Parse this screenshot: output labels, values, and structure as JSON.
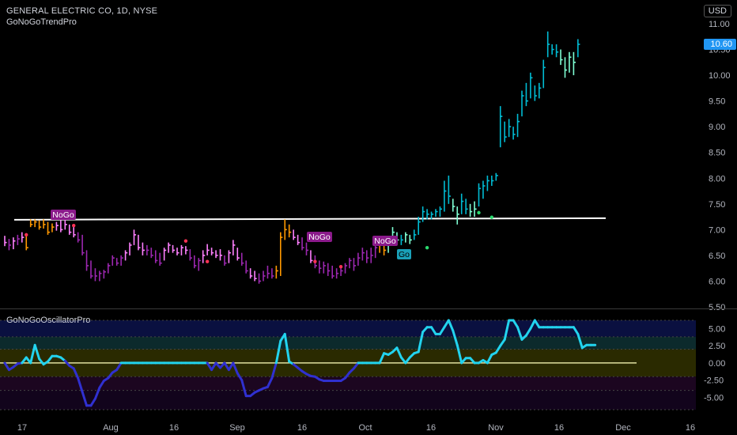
{
  "header": {
    "symbol_title": "GENERAL ELECTRIC CO, 1D, NYSE",
    "indicator_main": "GoNoGoTrendPro",
    "indicator_sub": "GoNoGoOscillatorPro",
    "currency": "USD",
    "last_price": "10.60"
  },
  "colors": {
    "background": "#000000",
    "go_strong": "#00bcd4",
    "go_weak": "#7fffd4",
    "nogo_strong": "#9c27b0",
    "nogo_weak": "#ff80ff",
    "neutral": "#ff9800",
    "osc_positive": "#22d3ee",
    "osc_negative": "#3030d0",
    "resistance": "#ffffff"
  },
  "chart_data": [
    {
      "type": "ohlc",
      "ylim": [
        5.5,
        11.0
      ],
      "yticks": [
        "11.00",
        "10.50",
        "10.00",
        "9.50",
        "9.00",
        "8.50",
        "8.00",
        "7.50",
        "7.00",
        "6.50",
        "6.00",
        "5.50"
      ],
      "xtick_labels": [
        "17",
        "Aug",
        "16",
        "Sep",
        "16",
        "Oct",
        "16",
        "Nov",
        "16",
        "Dec",
        "16"
      ],
      "resistance_level": 7.2,
      "labels": [
        {
          "text": "NoGo",
          "bar": 11
        },
        {
          "text": "NoGo",
          "bar": 70
        },
        {
          "text": "NoGo",
          "bar": 87
        },
        {
          "text": "Go",
          "bar": 90
        }
      ],
      "bars": [
        {
          "h": 6.88,
          "l": 6.68,
          "c": 6.75,
          "s": "nogo_weak"
        },
        {
          "h": 6.82,
          "l": 6.6,
          "c": 6.7,
          "s": "nogo_strong"
        },
        {
          "h": 6.85,
          "l": 6.62,
          "c": 6.78,
          "s": "nogo_weak"
        },
        {
          "h": 6.9,
          "l": 6.7,
          "c": 6.82,
          "s": "nogo_strong"
        },
        {
          "h": 6.95,
          "l": 6.75,
          "c": 6.85,
          "s": "nogo_weak"
        },
        {
          "h": 6.9,
          "l": 6.6,
          "c": 6.65,
          "s": "neutral"
        },
        {
          "h": 7.2,
          "l": 7.05,
          "c": 7.1,
          "s": "neutral"
        },
        {
          "h": 7.2,
          "l": 7.05,
          "c": 7.15,
          "s": "neutral"
        },
        {
          "h": 7.18,
          "l": 7.0,
          "c": 7.05,
          "s": "neutral"
        },
        {
          "h": 7.2,
          "l": 7.02,
          "c": 7.1,
          "s": "neutral"
        },
        {
          "h": 7.15,
          "l": 6.9,
          "c": 6.95,
          "s": "neutral"
        },
        {
          "h": 7.12,
          "l": 6.95,
          "c": 7.05,
          "s": "neutral"
        },
        {
          "h": 7.15,
          "l": 6.98,
          "c": 7.08,
          "s": "nogo_weak"
        },
        {
          "h": 7.18,
          "l": 6.95,
          "c": 7.0,
          "s": "nogo_weak"
        },
        {
          "h": 7.2,
          "l": 7.0,
          "c": 7.1,
          "s": "nogo_weak"
        },
        {
          "h": 7.1,
          "l": 6.9,
          "c": 6.95,
          "s": "nogo_weak"
        },
        {
          "h": 7.05,
          "l": 6.85,
          "c": 6.9,
          "s": "nogo_weak"
        },
        {
          "h": 6.95,
          "l": 6.75,
          "c": 6.8,
          "s": "nogo_strong"
        },
        {
          "h": 6.9,
          "l": 6.5,
          "c": 6.55,
          "s": "nogo_strong"
        },
        {
          "h": 6.6,
          "l": 6.2,
          "c": 6.3,
          "s": "nogo_strong"
        },
        {
          "h": 6.4,
          "l": 6.05,
          "c": 6.1,
          "s": "nogo_strong"
        },
        {
          "h": 6.25,
          "l": 6.0,
          "c": 6.1,
          "s": "nogo_strong"
        },
        {
          "h": 6.2,
          "l": 6.0,
          "c": 6.15,
          "s": "nogo_strong"
        },
        {
          "h": 6.22,
          "l": 6.05,
          "c": 6.18,
          "s": "nogo_strong"
        },
        {
          "h": 6.35,
          "l": 6.15,
          "c": 6.3,
          "s": "nogo_strong"
        },
        {
          "h": 6.5,
          "l": 6.3,
          "c": 6.45,
          "s": "nogo_strong"
        },
        {
          "h": 6.45,
          "l": 6.3,
          "c": 6.35,
          "s": "nogo_strong"
        },
        {
          "h": 6.5,
          "l": 6.3,
          "c": 6.45,
          "s": "nogo_strong"
        },
        {
          "h": 6.6,
          "l": 6.4,
          "c": 6.55,
          "s": "nogo_weak"
        },
        {
          "h": 6.75,
          "l": 6.5,
          "c": 6.7,
          "s": "nogo_weak"
        },
        {
          "h": 7.0,
          "l": 6.7,
          "c": 6.9,
          "s": "nogo_weak"
        },
        {
          "h": 6.9,
          "l": 6.6,
          "c": 6.65,
          "s": "nogo_weak"
        },
        {
          "h": 6.75,
          "l": 6.5,
          "c": 6.6,
          "s": "nogo_weak"
        },
        {
          "h": 6.7,
          "l": 6.5,
          "c": 6.6,
          "s": "nogo_strong"
        },
        {
          "h": 6.65,
          "l": 6.45,
          "c": 6.5,
          "s": "nogo_strong"
        },
        {
          "h": 6.6,
          "l": 6.35,
          "c": 6.4,
          "s": "nogo_strong"
        },
        {
          "h": 6.55,
          "l": 6.3,
          "c": 6.35,
          "s": "nogo_strong"
        },
        {
          "h": 6.65,
          "l": 6.4,
          "c": 6.6,
          "s": "nogo_weak"
        },
        {
          "h": 6.75,
          "l": 6.55,
          "c": 6.7,
          "s": "nogo_weak"
        },
        {
          "h": 6.7,
          "l": 6.55,
          "c": 6.6,
          "s": "nogo_weak"
        },
        {
          "h": 6.65,
          "l": 6.5,
          "c": 6.55,
          "s": "nogo_weak"
        },
        {
          "h": 6.7,
          "l": 6.5,
          "c": 6.65,
          "s": "nogo_weak"
        },
        {
          "h": 6.68,
          "l": 6.52,
          "c": 6.6,
          "s": "nogo_weak"
        },
        {
          "h": 6.62,
          "l": 6.4,
          "c": 6.45,
          "s": "nogo_strong"
        },
        {
          "h": 6.5,
          "l": 6.25,
          "c": 6.3,
          "s": "nogo_strong"
        },
        {
          "h": 6.45,
          "l": 6.2,
          "c": 6.4,
          "s": "nogo_strong"
        },
        {
          "h": 6.6,
          "l": 6.35,
          "c": 6.5,
          "s": "nogo_weak"
        },
        {
          "h": 6.72,
          "l": 6.5,
          "c": 6.6,
          "s": "nogo_weak"
        },
        {
          "h": 6.65,
          "l": 6.5,
          "c": 6.55,
          "s": "nogo_weak"
        },
        {
          "h": 6.6,
          "l": 6.45,
          "c": 6.5,
          "s": "nogo_weak"
        },
        {
          "h": 6.62,
          "l": 6.4,
          "c": 6.5,
          "s": "nogo_weak"
        },
        {
          "h": 6.5,
          "l": 6.3,
          "c": 6.35,
          "s": "nogo_strong"
        },
        {
          "h": 6.6,
          "l": 6.35,
          "c": 6.55,
          "s": "nogo_weak"
        },
        {
          "h": 6.8,
          "l": 6.5,
          "c": 6.7,
          "s": "nogo_weak"
        },
        {
          "h": 6.65,
          "l": 6.4,
          "c": 6.45,
          "s": "nogo_weak"
        },
        {
          "h": 6.55,
          "l": 6.3,
          "c": 6.35,
          "s": "nogo_strong"
        },
        {
          "h": 6.4,
          "l": 6.15,
          "c": 6.2,
          "s": "nogo_strong"
        },
        {
          "h": 6.25,
          "l": 6.05,
          "c": 6.1,
          "s": "nogo_weak"
        },
        {
          "h": 6.2,
          "l": 6.0,
          "c": 6.05,
          "s": "nogo_weak"
        },
        {
          "h": 6.15,
          "l": 5.95,
          "c": 6.0,
          "s": "nogo_strong"
        },
        {
          "h": 6.2,
          "l": 6.0,
          "c": 6.1,
          "s": "nogo_strong"
        },
        {
          "h": 6.3,
          "l": 6.05,
          "c": 6.15,
          "s": "nogo_strong"
        },
        {
          "h": 6.25,
          "l": 6.05,
          "c": 6.1,
          "s": "nogo_strong"
        },
        {
          "h": 6.3,
          "l": 6.05,
          "c": 6.2,
          "s": "neutral"
        },
        {
          "h": 6.95,
          "l": 6.1,
          "c": 6.85,
          "s": "neutral"
        },
        {
          "h": 7.2,
          "l": 6.8,
          "c": 7.0,
          "s": "neutral"
        },
        {
          "h": 7.1,
          "l": 6.85,
          "c": 6.95,
          "s": "neutral"
        },
        {
          "h": 7.0,
          "l": 6.8,
          "c": 6.85,
          "s": "nogo_weak"
        },
        {
          "h": 6.9,
          "l": 6.7,
          "c": 6.75,
          "s": "nogo_weak"
        },
        {
          "h": 6.85,
          "l": 6.6,
          "c": 6.65,
          "s": "nogo_strong"
        },
        {
          "h": 6.75,
          "l": 6.5,
          "c": 6.6,
          "s": "nogo_strong"
        },
        {
          "h": 6.6,
          "l": 6.35,
          "c": 6.4,
          "s": "nogo_weak"
        },
        {
          "h": 6.5,
          "l": 6.25,
          "c": 6.3,
          "s": "nogo_strong"
        },
        {
          "h": 6.4,
          "l": 6.15,
          "c": 6.25,
          "s": "nogo_strong"
        },
        {
          "h": 6.38,
          "l": 6.15,
          "c": 6.3,
          "s": "nogo_strong"
        },
        {
          "h": 6.35,
          "l": 6.1,
          "c": 6.2,
          "s": "nogo_strong"
        },
        {
          "h": 6.3,
          "l": 6.05,
          "c": 6.1,
          "s": "nogo_strong"
        },
        {
          "h": 6.25,
          "l": 6.05,
          "c": 6.15,
          "s": "nogo_strong"
        },
        {
          "h": 6.3,
          "l": 6.1,
          "c": 6.2,
          "s": "nogo_strong"
        },
        {
          "h": 6.35,
          "l": 6.15,
          "c": 6.3,
          "s": "nogo_strong"
        },
        {
          "h": 6.45,
          "l": 6.25,
          "c": 6.4,
          "s": "nogo_strong"
        },
        {
          "h": 6.45,
          "l": 6.2,
          "c": 6.3,
          "s": "nogo_strong"
        },
        {
          "h": 6.55,
          "l": 6.3,
          "c": 6.45,
          "s": "nogo_strong"
        },
        {
          "h": 6.65,
          "l": 6.4,
          "c": 6.55,
          "s": "nogo_strong"
        },
        {
          "h": 6.6,
          "l": 6.35,
          "c": 6.45,
          "s": "nogo_strong"
        },
        {
          "h": 6.65,
          "l": 6.35,
          "c": 6.5,
          "s": "nogo_strong"
        },
        {
          "h": 6.75,
          "l": 6.45,
          "c": 6.65,
          "s": "nogo_strong"
        },
        {
          "h": 6.85,
          "l": 6.55,
          "c": 6.7,
          "s": "neutral"
        },
        {
          "h": 6.7,
          "l": 6.5,
          "c": 6.6,
          "s": "neutral"
        },
        {
          "h": 6.8,
          "l": 6.55,
          "c": 6.75,
          "s": "go_weak"
        },
        {
          "h": 7.05,
          "l": 6.7,
          "c": 6.95,
          "s": "go_weak"
        },
        {
          "h": 6.95,
          "l": 6.75,
          "c": 6.8,
          "s": "go_weak"
        },
        {
          "h": 6.9,
          "l": 6.7,
          "c": 6.8,
          "s": "go_strong"
        },
        {
          "h": 6.95,
          "l": 6.75,
          "c": 6.9,
          "s": "go_weak"
        },
        {
          "h": 6.9,
          "l": 6.72,
          "c": 6.8,
          "s": "go_weak"
        },
        {
          "h": 7.0,
          "l": 6.8,
          "c": 6.9,
          "s": "go_strong"
        },
        {
          "h": 7.25,
          "l": 6.9,
          "c": 7.15,
          "s": "go_strong"
        },
        {
          "h": 7.45,
          "l": 7.15,
          "c": 7.35,
          "s": "go_strong"
        },
        {
          "h": 7.4,
          "l": 7.2,
          "c": 7.3,
          "s": "go_strong"
        },
        {
          "h": 7.35,
          "l": 7.2,
          "c": 7.3,
          "s": "go_strong"
        },
        {
          "h": 7.4,
          "l": 7.25,
          "c": 7.35,
          "s": "go_strong"
        },
        {
          "h": 7.45,
          "l": 7.25,
          "c": 7.4,
          "s": "go_strong"
        },
        {
          "h": 7.95,
          "l": 7.35,
          "c": 7.75,
          "s": "go_strong"
        },
        {
          "h": 8.05,
          "l": 7.5,
          "c": 7.65,
          "s": "go_strong"
        },
        {
          "h": 7.6,
          "l": 7.35,
          "c": 7.45,
          "s": "go_weak"
        },
        {
          "h": 7.45,
          "l": 7.1,
          "c": 7.3,
          "s": "go_weak"
        },
        {
          "h": 7.7,
          "l": 7.3,
          "c": 7.55,
          "s": "go_strong"
        },
        {
          "h": 7.6,
          "l": 7.3,
          "c": 7.4,
          "s": "go_strong"
        },
        {
          "h": 7.5,
          "l": 7.25,
          "c": 7.35,
          "s": "go_weak"
        },
        {
          "h": 7.55,
          "l": 7.25,
          "c": 7.4,
          "s": "go_weak"
        },
        {
          "h": 7.9,
          "l": 7.45,
          "c": 7.8,
          "s": "go_strong"
        },
        {
          "h": 7.95,
          "l": 7.6,
          "c": 7.85,
          "s": "go_strong"
        },
        {
          "h": 8.05,
          "l": 7.75,
          "c": 7.95,
          "s": "go_strong"
        },
        {
          "h": 8.05,
          "l": 7.85,
          "c": 7.95,
          "s": "go_strong"
        },
        {
          "h": 8.1,
          "l": 7.95,
          "c": 8.05,
          "s": "go_strong"
        },
        {
          "h": 9.4,
          "l": 8.6,
          "c": 9.2,
          "s": "go_strong"
        },
        {
          "h": 9.1,
          "l": 8.7,
          "c": 8.8,
          "s": "go_strong"
        },
        {
          "h": 9.15,
          "l": 8.8,
          "c": 9.0,
          "s": "go_strong"
        },
        {
          "h": 9.0,
          "l": 8.75,
          "c": 8.85,
          "s": "go_strong"
        },
        {
          "h": 9.25,
          "l": 8.8,
          "c": 9.1,
          "s": "go_strong"
        },
        {
          "h": 9.7,
          "l": 9.2,
          "c": 9.6,
          "s": "go_strong"
        },
        {
          "h": 9.85,
          "l": 9.4,
          "c": 9.5,
          "s": "go_strong"
        },
        {
          "h": 10.05,
          "l": 9.55,
          "c": 9.95,
          "s": "go_strong"
        },
        {
          "h": 9.8,
          "l": 9.5,
          "c": 9.6,
          "s": "go_strong"
        },
        {
          "h": 9.85,
          "l": 9.55,
          "c": 9.75,
          "s": "go_strong"
        },
        {
          "h": 10.3,
          "l": 9.75,
          "c": 10.15,
          "s": "go_strong"
        },
        {
          "h": 10.85,
          "l": 10.35,
          "c": 10.6,
          "s": "go_strong"
        },
        {
          "h": 10.6,
          "l": 10.4,
          "c": 10.5,
          "s": "go_strong"
        },
        {
          "h": 10.6,
          "l": 10.35,
          "c": 10.45,
          "s": "go_strong"
        },
        {
          "h": 10.5,
          "l": 10.2,
          "c": 10.3,
          "s": "go_weak"
        },
        {
          "h": 10.35,
          "l": 9.95,
          "c": 10.1,
          "s": "go_weak"
        },
        {
          "h": 10.45,
          "l": 10.05,
          "c": 10.35,
          "s": "go_weak"
        },
        {
          "h": 10.45,
          "l": 10.0,
          "c": 10.25,
          "s": "go_weak"
        },
        {
          "h": 10.7,
          "l": 10.35,
          "c": 10.6,
          "s": "go_strong"
        }
      ],
      "dots": [
        {
          "bar": 5,
          "y": 6.9,
          "c": "#ff3355"
        },
        {
          "bar": 16,
          "y": 7.08,
          "c": "#ff3355"
        },
        {
          "bar": 42,
          "y": 6.78,
          "c": "#ff3355"
        },
        {
          "bar": 47,
          "y": 6.38,
          "c": "#ff3355"
        },
        {
          "bar": 72,
          "y": 6.38,
          "c": "#ff3355"
        },
        {
          "bar": 78,
          "y": 6.28,
          "c": "#ff3355"
        },
        {
          "bar": 98,
          "y": 6.65,
          "c": "#2bd96e"
        },
        {
          "bar": 110,
          "y": 7.33,
          "c": "#2bd96e"
        },
        {
          "bar": 113,
          "y": 7.24,
          "c": "#2bd96e"
        }
      ]
    },
    {
      "type": "line",
      "ylim": [
        -6.8,
        6.2
      ],
      "yticks": [
        "5.00",
        "2.50",
        "0.00",
        "-2.50",
        "-5.00"
      ],
      "zero_line": 0,
      "values": [
        0,
        -1,
        -0.6,
        -0.1,
        0,
        0.8,
        0,
        2.6,
        0.6,
        -0.2,
        0.2,
        1,
        1,
        0.8,
        0.3,
        -0.4,
        -0.8,
        -2.2,
        -4.2,
        -6.2,
        -6.2,
        -5.2,
        -3.6,
        -2.6,
        -2.2,
        -1.4,
        -1,
        0,
        0,
        0,
        0,
        0,
        0,
        0,
        0,
        0,
        0,
        0,
        0,
        0,
        0,
        0,
        0,
        0,
        0,
        0,
        0,
        0,
        -1,
        0,
        -0.7,
        0,
        -1,
        0,
        -1.5,
        -2.5,
        -4.8,
        -4.8,
        -4.3,
        -4,
        -3.7,
        -3.5,
        -2.2,
        0,
        3.2,
        4.2,
        0.2,
        -0.2,
        -0.7,
        -1.2,
        -1.6,
        -1.9,
        -2,
        -2.4,
        -2.6,
        -2.6,
        -2.6,
        -2.6,
        -2.6,
        -2.2,
        -1.4,
        -0.8,
        0,
        0,
        0,
        0,
        0,
        0,
        1.4,
        1.2,
        1.6,
        2.2,
        0.8,
        0,
        0.8,
        1.4,
        1.6,
        4.5,
        5.2,
        5.2,
        4.2,
        4.2,
        5.2,
        6.2,
        4.7,
        2.6,
        0,
        0.7,
        0.7,
        0,
        0,
        0.4,
        0,
        1.2,
        1.5,
        2.5,
        3.4,
        6.2,
        6.2,
        5.2,
        3.4,
        4,
        5,
        6.2,
        5.2,
        5.2,
        5.2,
        5.2,
        5.2,
        5.2,
        5.2,
        5.2,
        5.2,
        4.2,
        2.2,
        2.6,
        2.6,
        2.6
      ]
    }
  ]
}
